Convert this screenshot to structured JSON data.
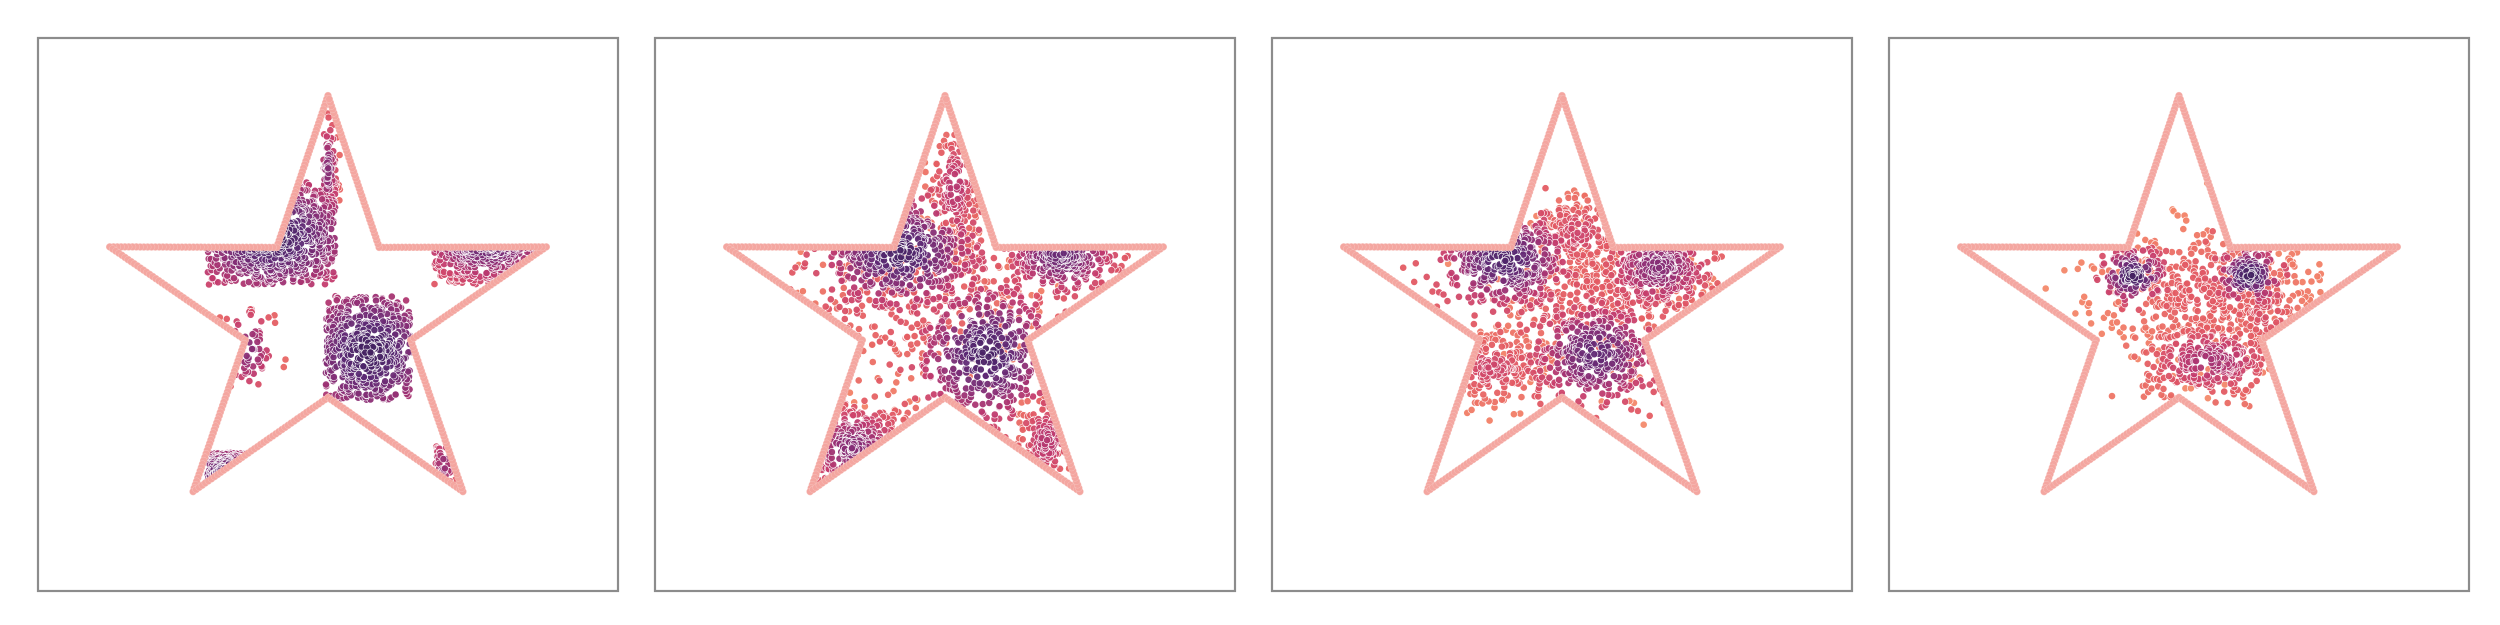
{
  "figure": {
    "background": "#ffffff",
    "frame_color": "#8c8c8c",
    "boundary_color": "#f4a6a0",
    "colormap": [
      "#f7b07a",
      "#f27f66",
      "#e35a63",
      "#c43c6e",
      "#8f2f76",
      "#5d2a75",
      "#2b1b4e"
    ]
  },
  "chart_data": [
    {
      "type": "scatter",
      "panel": 1,
      "description_shape": "five-pointed star outline",
      "title": "",
      "xlabel": "",
      "ylabel": "",
      "ticks": "none",
      "grid": false,
      "xlim": [
        -1.2,
        1.2
      ],
      "ylim": [
        -1.2,
        1.2
      ],
      "clusters": [
        {
          "cx": -0.23,
          "cy": 0.34,
          "sx": 0.2,
          "sy": 0.15,
          "n": 520,
          "dens": 0.92,
          "box": [
            -0.5,
            0.03,
            0.13,
            0.58
          ]
        },
        {
          "cx": 0.17,
          "cy": -0.16,
          "sx": 0.17,
          "sy": 0.18,
          "n": 520,
          "dens": 0.92,
          "box": [
            -0.01,
            0.34,
            -0.37,
            0.08
          ]
        },
        {
          "cx": 0.66,
          "cy": 0.34,
          "sx": 0.15,
          "sy": 0.11,
          "n": 300,
          "dens": 0.85,
          "box": [
            0.44,
            0.9,
            0.13,
            0.44
          ]
        },
        {
          "cx": 0.0,
          "cy": 0.63,
          "sx": 0.02,
          "sy": 0.12,
          "n": 80,
          "dens": 0.7,
          "box": [
            -0.02,
            0.05,
            0.44,
            0.9
          ]
        },
        {
          "cx": -0.33,
          "cy": -0.15,
          "sx": 0.06,
          "sy": 0.1,
          "n": 60,
          "dens": 0.7,
          "box": [
            -0.45,
            -0.17,
            -0.33,
            0.03
          ]
        },
        {
          "cx": -0.42,
          "cy": -0.7,
          "sx": 0.1,
          "sy": 0.08,
          "n": 150,
          "dens": 0.85,
          "box": [
            -0.5,
            -0.3,
            -0.82,
            -0.6
          ]
        },
        {
          "cx": 0.48,
          "cy": -0.65,
          "sx": 0.03,
          "sy": 0.08,
          "n": 40,
          "dens": 0.65,
          "box": [
            0.44,
            0.53,
            -0.8,
            -0.56
          ]
        }
      ]
    },
    {
      "type": "scatter",
      "panel": 2,
      "description_shape": "five-pointed star outline",
      "title": "",
      "xlabel": "",
      "ylabel": "",
      "ticks": "none",
      "grid": false,
      "xlim": [
        -1.2,
        1.2
      ],
      "ylim": [
        -1.2,
        1.2
      ],
      "clusters": [
        {
          "cx": -0.19,
          "cy": 0.27,
          "sx": 0.17,
          "sy": 0.13,
          "n": 420,
          "dens": 0.9
        },
        {
          "cx": 0.17,
          "cy": -0.17,
          "sx": 0.15,
          "sy": 0.16,
          "n": 420,
          "dens": 0.9
        },
        {
          "cx": 0.48,
          "cy": 0.27,
          "sx": 0.12,
          "sy": 0.1,
          "n": 260,
          "dens": 0.8
        },
        {
          "cx": 0.04,
          "cy": 0.55,
          "sx": 0.05,
          "sy": 0.13,
          "n": 150,
          "dens": 0.55
        },
        {
          "cx": -0.38,
          "cy": -0.58,
          "sx": 0.12,
          "sy": 0.1,
          "n": 210,
          "dens": 0.7
        },
        {
          "cx": 0.42,
          "cy": -0.55,
          "sx": 0.06,
          "sy": 0.1,
          "n": 120,
          "dens": 0.55
        },
        {
          "cx": -0.12,
          "cy": 0.05,
          "sx": 0.28,
          "sy": 0.22,
          "n": 260,
          "dens": 0.35
        }
      ]
    },
    {
      "type": "scatter",
      "panel": 3,
      "description_shape": "five-pointed star outline",
      "title": "",
      "xlabel": "",
      "ylabel": "",
      "ticks": "none",
      "grid": false,
      "xlim": [
        -1.2,
        1.2
      ],
      "ylim": [
        -1.2,
        1.2
      ],
      "clusters": [
        {
          "cx": -0.24,
          "cy": 0.24,
          "sx": 0.14,
          "sy": 0.11,
          "n": 380,
          "dens": 0.88
        },
        {
          "cx": 0.14,
          "cy": -0.17,
          "sx": 0.14,
          "sy": 0.12,
          "n": 380,
          "dens": 0.82
        },
        {
          "cx": 0.4,
          "cy": 0.21,
          "sx": 0.12,
          "sy": 0.1,
          "n": 300,
          "dens": 0.7
        },
        {
          "cx": 0.07,
          "cy": 0.35,
          "sx": 0.09,
          "sy": 0.09,
          "n": 160,
          "dens": 0.45
        },
        {
          "cx": -0.29,
          "cy": -0.23,
          "sx": 0.11,
          "sy": 0.08,
          "n": 170,
          "dens": 0.45
        },
        {
          "cx": 0.15,
          "cy": 0.05,
          "sx": 0.24,
          "sy": 0.18,
          "n": 300,
          "dens": 0.35
        }
      ]
    },
    {
      "type": "scatter",
      "panel": 4,
      "description_shape": "five-pointed star outline",
      "title": "",
      "xlabel": "",
      "ylabel": "",
      "ticks": "none",
      "grid": false,
      "xlim": [
        -1.2,
        1.2
      ],
      "ylim": [
        -1.2,
        1.2
      ],
      "clusters": [
        {
          "cx": -0.19,
          "cy": 0.17,
          "sx": 0.07,
          "sy": 0.06,
          "n": 140,
          "dens": 0.92
        },
        {
          "cx": 0.29,
          "cy": 0.17,
          "sx": 0.07,
          "sy": 0.06,
          "n": 140,
          "dens": 0.92
        },
        {
          "cx": 0.13,
          "cy": -0.2,
          "sx": 0.14,
          "sy": 0.08,
          "n": 300,
          "dens": 0.6
        },
        {
          "cx": 0.12,
          "cy": 0.1,
          "sx": 0.24,
          "sy": 0.15,
          "n": 420,
          "dens": 0.35
        },
        {
          "cx": 0.36,
          "cy": 0.0,
          "sx": 0.08,
          "sy": 0.1,
          "n": 120,
          "dens": 0.4
        }
      ]
    }
  ]
}
